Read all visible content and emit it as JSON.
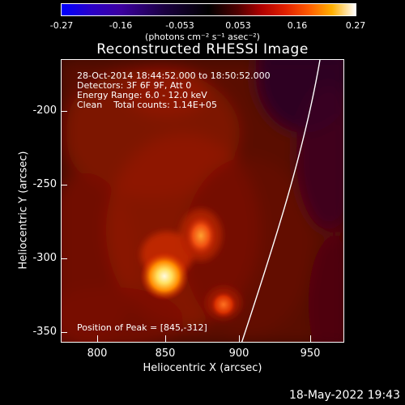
{
  "colorbar": {
    "ticks": [
      "-0.27",
      "-0.16",
      "-0.053",
      "0.053",
      "0.16",
      "0.27"
    ],
    "units_label": "(photons cm⁻² s⁻¹ asec⁻²)"
  },
  "title": "Reconstructed RHESSI Image",
  "info": {
    "time_range": "28-Oct-2014 18:44:52.000 to 18:50:52.000",
    "detectors": "Detectors: 3F 6F 9F, Att 0",
    "energy": "Energy Range: 6.0 - 12.0 keV",
    "clean": "Clean    Total counts: 1.14E+05"
  },
  "peak_label": "Position of Peak = [845,-312]",
  "axes": {
    "xlabel": "Heliocentric X (arcsec)",
    "ylabel": "Heliocentric Y (arcsec)",
    "xticks": [
      "800",
      "850",
      "900",
      "950"
    ],
    "yticks": [
      "-200",
      "-250",
      "-300",
      "-350"
    ]
  },
  "timestamp": "18-May-2022 19:43",
  "colors": {
    "limb": "#ffffff",
    "background": "#000000"
  }
}
